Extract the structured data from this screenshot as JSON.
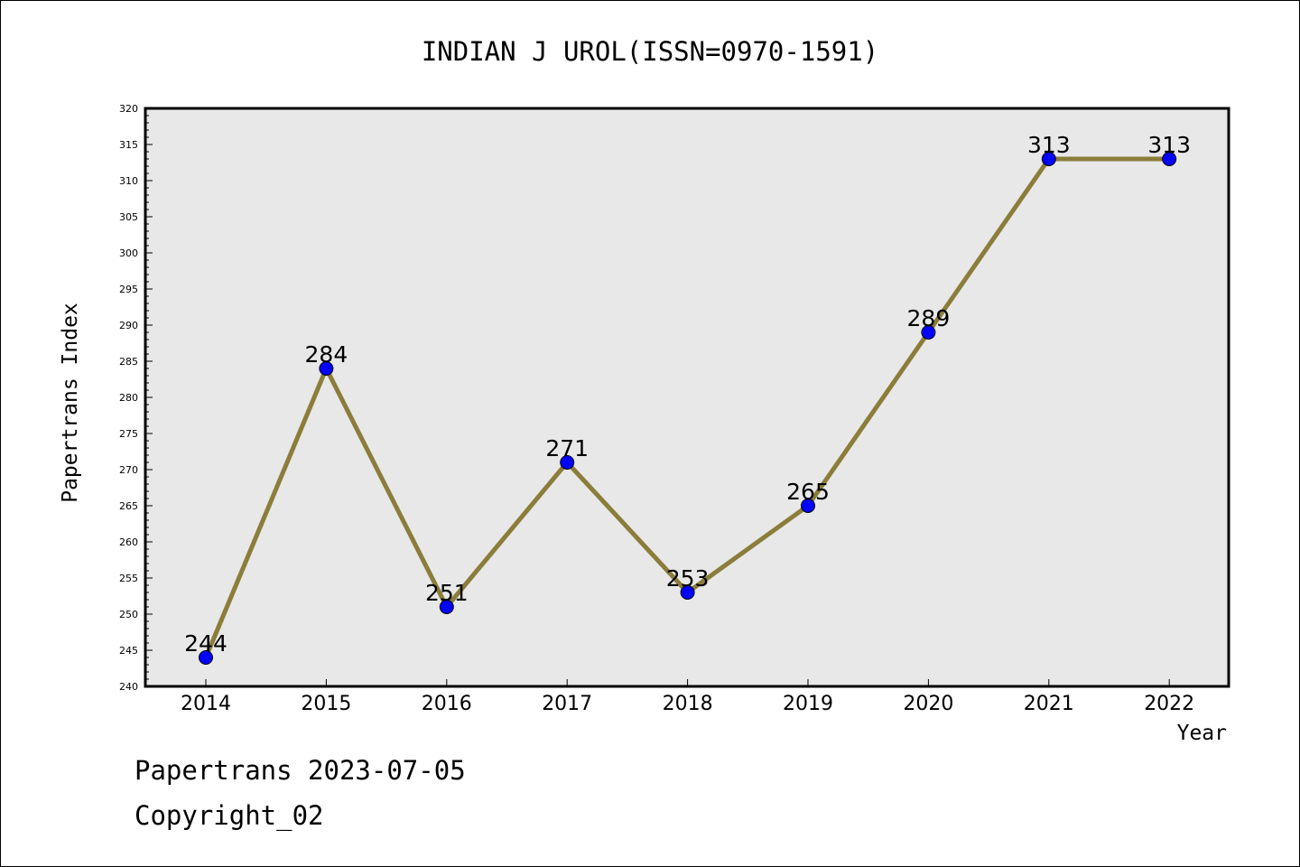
{
  "chart_data": {
    "type": "line",
    "title": "INDIAN J UROL(ISSN=0970-1591)",
    "xlabel": "Year",
    "ylabel": "Papertrans Index",
    "categories": [
      "2014",
      "2015",
      "2016",
      "2017",
      "2018",
      "2019",
      "2020",
      "2021",
      "2022"
    ],
    "values": [
      244,
      284,
      251,
      271,
      253,
      265,
      289,
      313,
      313
    ],
    "ylim": [
      240,
      320
    ],
    "ytick_step": 5,
    "grid": false,
    "line_color": "#8b7d3a",
    "marker_color": "#0000ff",
    "plot_background": "#e8e8e8"
  },
  "footer": {
    "line1": "Papertrans 2023-07-05",
    "line2": "Copyright_02"
  }
}
